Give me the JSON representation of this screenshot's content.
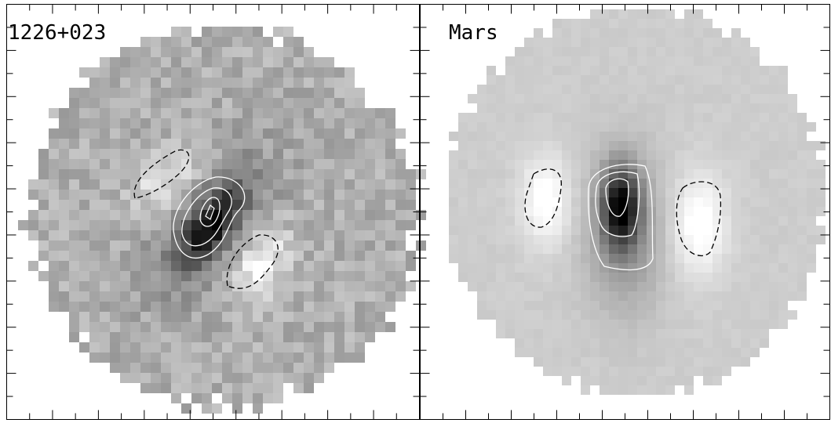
{
  "panels": [
    {
      "label": "1226+023"
    },
    {
      "label": "Mars"
    }
  ]
}
